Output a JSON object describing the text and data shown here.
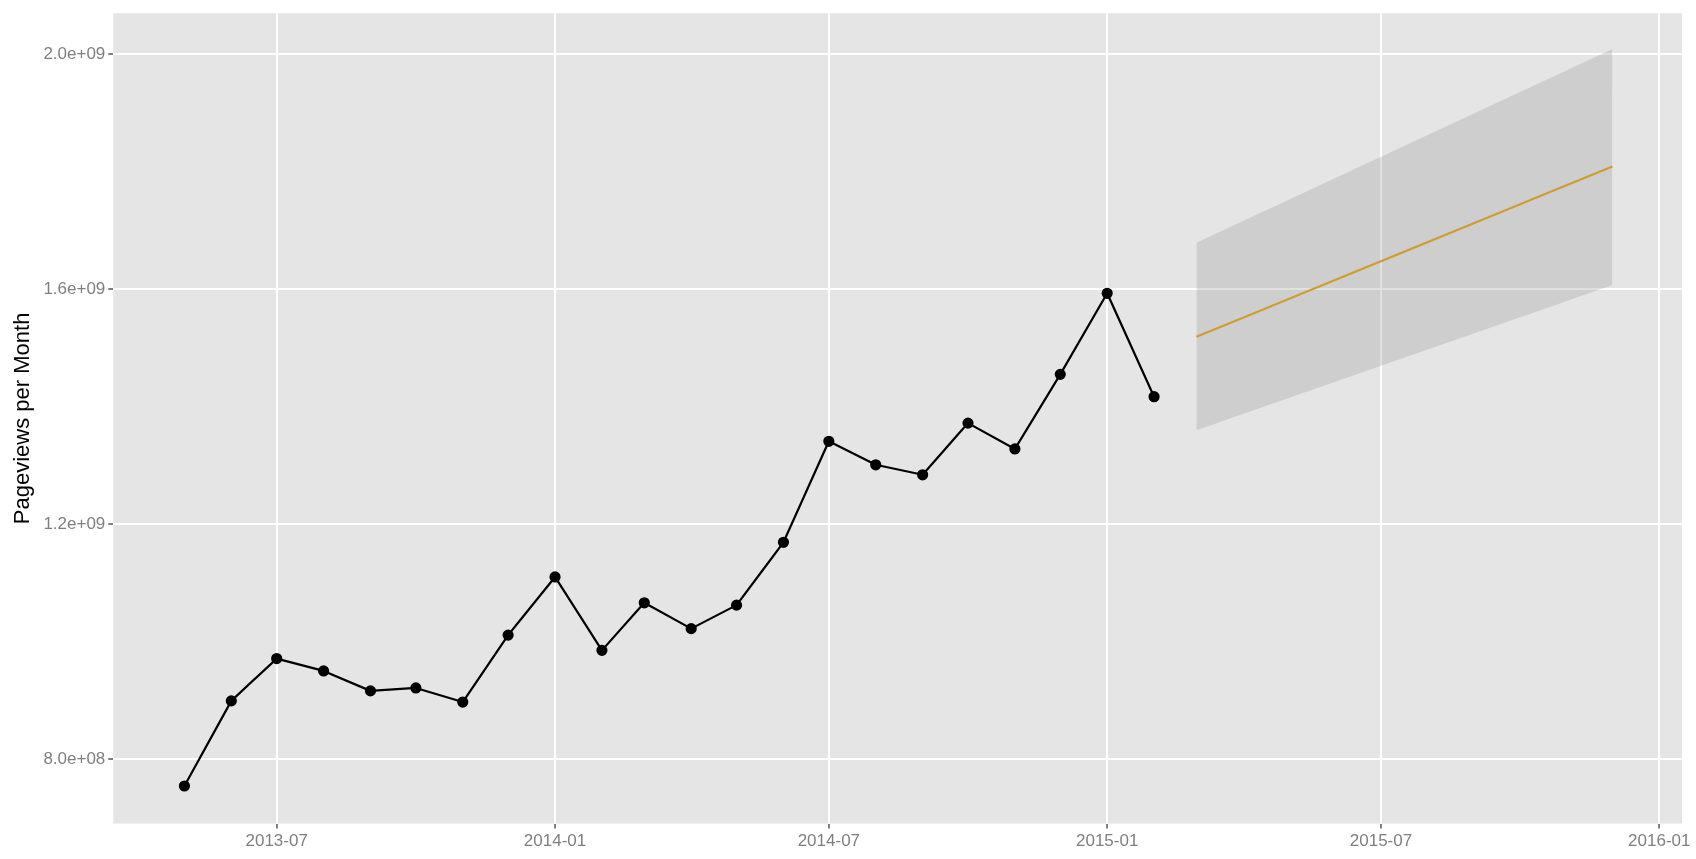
{
  "chart_data": {
    "type": "line",
    "ylabel": "Pageviews per Month",
    "xlim": [
      "2013-03-15",
      "2016-01-16"
    ],
    "xticks": [
      "2013-07",
      "2014-01",
      "2014-07",
      "2015-01",
      "2015-07",
      "2016-01"
    ],
    "ylim": [
      690000000,
      2070000000
    ],
    "yticks": [
      {
        "value": 800000000,
        "label": "8.0e+08"
      },
      {
        "value": 1200000000,
        "label": "1.2e+09"
      },
      {
        "value": 1600000000,
        "label": "1.6e+09"
      },
      {
        "value": 2000000000,
        "label": "2.0e+09"
      }
    ],
    "grid": true,
    "legend": false,
    "series": [
      {
        "color": "#000000",
        "marker": "circle",
        "line_style": "solid",
        "x": [
          "2013-05-01",
          "2013-06-01",
          "2013-07-01",
          "2013-08-01",
          "2013-09-01",
          "2013-10-01",
          "2013-11-01",
          "2013-12-01",
          "2014-01-01",
          "2014-02-01",
          "2014-03-01",
          "2014-04-01",
          "2014-05-01",
          "2014-06-01",
          "2014-07-01",
          "2014-08-01",
          "2014-09-01",
          "2014-10-01",
          "2014-11-01",
          "2014-12-01",
          "2015-01-01",
          "2015-02-01"
        ],
        "values": [
          754000000,
          899000000,
          971000000,
          950000000,
          916000000,
          921000000,
          897000000,
          1011000000,
          1110000000,
          985000000,
          1066000000,
          1022000000,
          1062000000,
          1169000000,
          1341000000,
          1301000000,
          1284000000,
          1372000000,
          1328000000,
          1455000000,
          1593000000,
          1417000000
        ]
      },
      {
        "color": "#e69f00",
        "marker": "none",
        "line_style": "solid",
        "x": [
          "2015-03-01",
          "2015-12-01"
        ],
        "values": [
          1519000000,
          1809000000
        ],
        "lower": [
          1360000000,
          1607000000
        ],
        "upper": [
          1679000000,
          2009000000
        ]
      }
    ]
  }
}
